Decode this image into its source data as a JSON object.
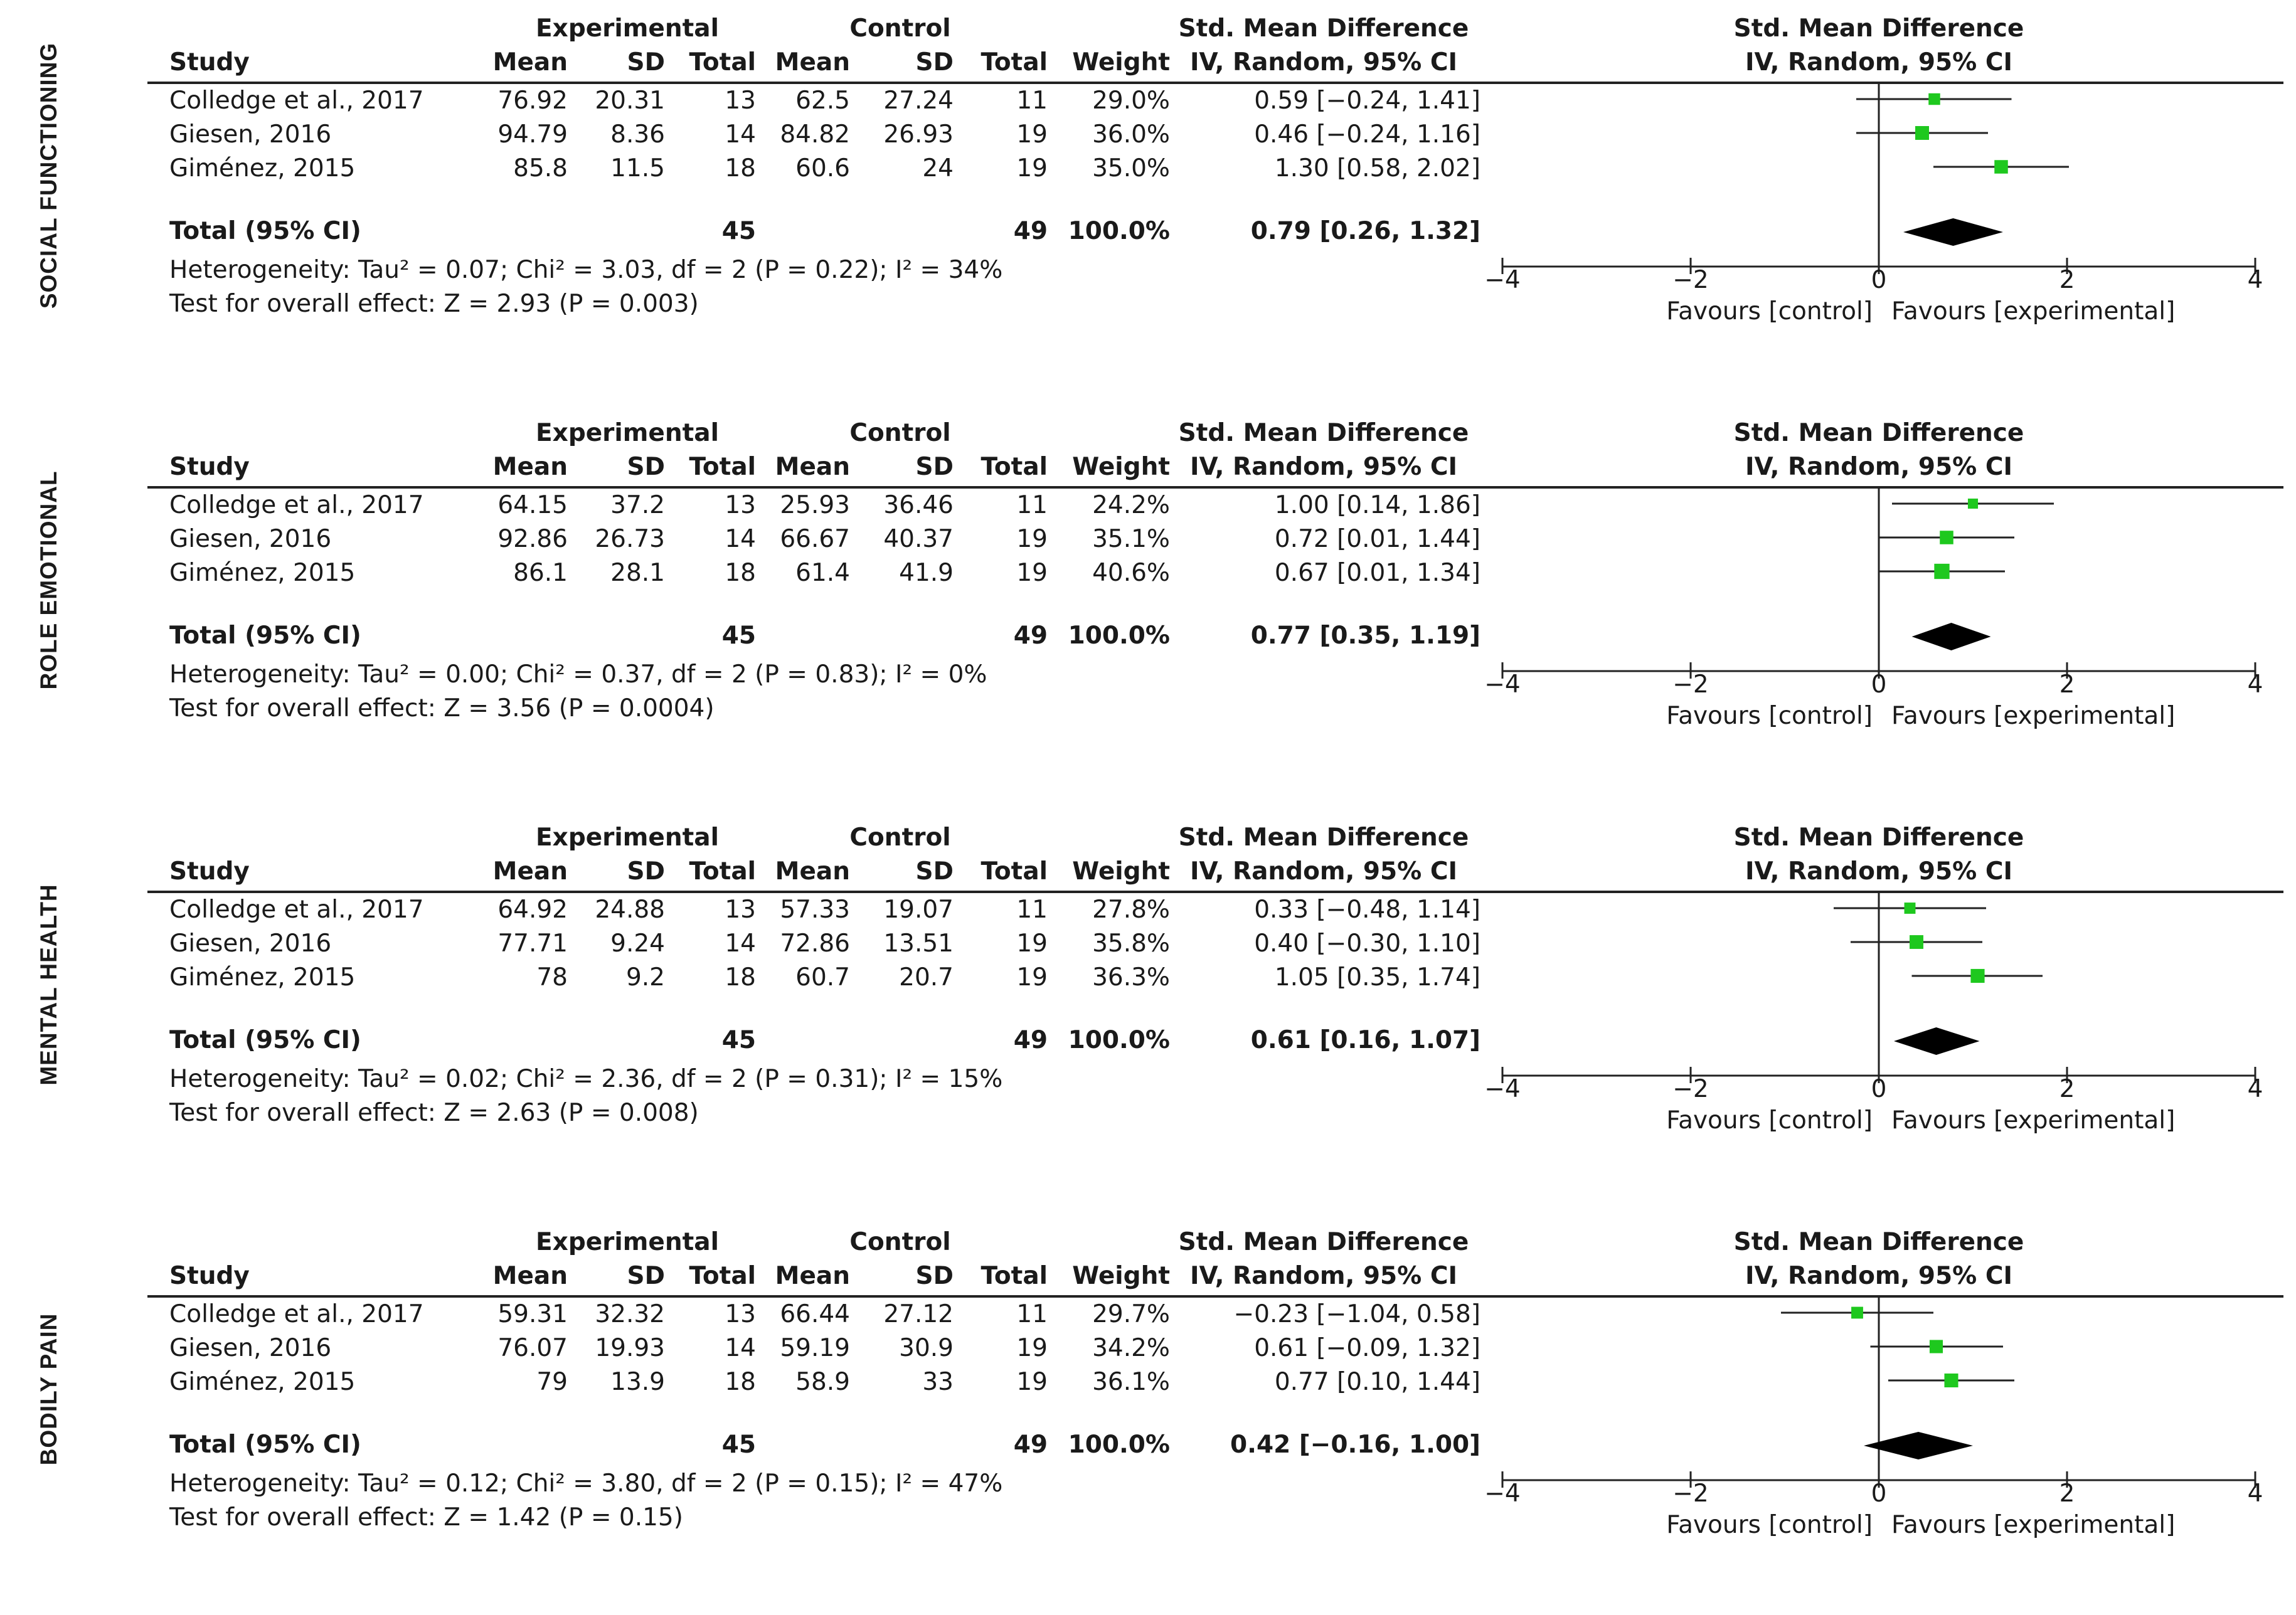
{
  "colors": {
    "point": "#1ec81e",
    "diamond": "#000000",
    "line": "#222222"
  },
  "headers": {
    "study": "Study",
    "experimental": "Experimental",
    "control": "Control",
    "mean": "Mean",
    "sd": "SD",
    "total": "Total",
    "weight": "Weight",
    "smd": "Std. Mean Difference",
    "method": "IV, Random, 95% CI"
  },
  "panels": [
    {
      "label": "SOCIAL FUNCTIONING",
      "rows": [
        {
          "study": "Colledge et al., 2017",
          "e_mean": "76.92",
          "e_sd": "20.31",
          "e_total": "13",
          "c_mean": "62.5",
          "c_sd": "27.24",
          "c_total": "11",
          "weight": "29.0%",
          "ci": "0.59 [−0.24, 1.41]"
        },
        {
          "study": "Giesen, 2016",
          "e_mean": "94.79",
          "e_sd": "8.36",
          "e_total": "14",
          "c_mean": "84.82",
          "c_sd": "26.93",
          "c_total": "19",
          "weight": "36.0%",
          "ci": "0.46 [−0.24, 1.16]"
        },
        {
          "study": "Giménez, 2015",
          "e_mean": "85.8",
          "e_sd": "11.5",
          "e_total": "18",
          "c_mean": "60.6",
          "c_sd": "24",
          "c_total": "19",
          "weight": "35.0%",
          "ci": "1.30 [0.58, 2.02]"
        }
      ],
      "total": {
        "label": "Total (95% CI)",
        "e_total": "45",
        "c_total": "49",
        "weight": "100.0%",
        "ci": "0.79 [0.26, 1.32]"
      },
      "heterogeneity": "Heterogeneity: Tau² = 0.07; Chi² = 3.03, df = 2 (P = 0.22); I² = 34%",
      "overall": "Test for overall effect: Z = 2.93 (P = 0.003)"
    },
    {
      "label": "ROLE EMOTIONAL",
      "rows": [
        {
          "study": "Colledge et al., 2017",
          "e_mean": "64.15",
          "e_sd": "37.2",
          "e_total": "13",
          "c_mean": "25.93",
          "c_sd": "36.46",
          "c_total": "11",
          "weight": "24.2%",
          "ci": "1.00 [0.14, 1.86]"
        },
        {
          "study": "Giesen, 2016",
          "e_mean": "92.86",
          "e_sd": "26.73",
          "e_total": "14",
          "c_mean": "66.67",
          "c_sd": "40.37",
          "c_total": "19",
          "weight": "35.1%",
          "ci": "0.72 [0.01, 1.44]"
        },
        {
          "study": "Giménez, 2015",
          "e_mean": "86.1",
          "e_sd": "28.1",
          "e_total": "18",
          "c_mean": "61.4",
          "c_sd": "41.9",
          "c_total": "19",
          "weight": "40.6%",
          "ci": "0.67 [0.01, 1.34]"
        }
      ],
      "total": {
        "label": "Total (95% CI)",
        "e_total": "45",
        "c_total": "49",
        "weight": "100.0%",
        "ci": "0.77 [0.35, 1.19]"
      },
      "heterogeneity": "Heterogeneity: Tau² = 0.00; Chi² = 0.37, df = 2 (P = 0.83); I² = 0%",
      "overall": "Test for overall effect: Z = 3.56 (P = 0.0004)"
    },
    {
      "label": "MENTAL HEALTH",
      "rows": [
        {
          "study": "Colledge et al., 2017",
          "e_mean": "64.92",
          "e_sd": "24.88",
          "e_total": "13",
          "c_mean": "57.33",
          "c_sd": "19.07",
          "c_total": "11",
          "weight": "27.8%",
          "ci": "0.33 [−0.48, 1.14]"
        },
        {
          "study": "Giesen, 2016",
          "e_mean": "77.71",
          "e_sd": "9.24",
          "e_total": "14",
          "c_mean": "72.86",
          "c_sd": "13.51",
          "c_total": "19",
          "weight": "35.8%",
          "ci": "0.40 [−0.30, 1.10]"
        },
        {
          "study": "Giménez, 2015",
          "e_mean": "78",
          "e_sd": "9.2",
          "e_total": "18",
          "c_mean": "60.7",
          "c_sd": "20.7",
          "c_total": "19",
          "weight": "36.3%",
          "ci": "1.05 [0.35, 1.74]"
        }
      ],
      "total": {
        "label": "Total (95% CI)",
        "e_total": "45",
        "c_total": "49",
        "weight": "100.0%",
        "ci": "0.61 [0.16, 1.07]"
      },
      "heterogeneity": "Heterogeneity: Tau² = 0.02; Chi² = 2.36, df = 2 (P = 0.31); I² = 15%",
      "overall": "Test for overall effect: Z = 2.63 (P = 0.008)"
    },
    {
      "label": "BODILY PAIN",
      "rows": [
        {
          "study": "Colledge et al., 2017",
          "e_mean": "59.31",
          "e_sd": "32.32",
          "e_total": "13",
          "c_mean": "66.44",
          "c_sd": "27.12",
          "c_total": "11",
          "weight": "29.7%",
          "ci": "−0.23 [−1.04, 0.58]"
        },
        {
          "study": "Giesen, 2016",
          "e_mean": "76.07",
          "e_sd": "19.93",
          "e_total": "14",
          "c_mean": "59.19",
          "c_sd": "30.9",
          "c_total": "19",
          "weight": "34.2%",
          "ci": "0.61 [−0.09, 1.32]"
        },
        {
          "study": "Giménez, 2015",
          "e_mean": "79",
          "e_sd": "13.9",
          "e_total": "18",
          "c_mean": "58.9",
          "c_sd": "33",
          "c_total": "19",
          "weight": "36.1%",
          "ci": "0.77 [0.10, 1.44]"
        }
      ],
      "total": {
        "label": "Total (95% CI)",
        "e_total": "45",
        "c_total": "49",
        "weight": "100.0%",
        "ci": "0.42 [−0.16, 1.00]"
      },
      "heterogeneity": "Heterogeneity: Tau² = 0.12; Chi² = 3.80, df = 2 (P = 0.15); I² = 47%",
      "overall": "Test for overall effect: Z = 1.42 (P = 0.15)"
    }
  ],
  "chart_data": [
    {
      "type": "forest",
      "title": "SOCIAL FUNCTIONING",
      "plot_title": "Std. Mean Difference",
      "plot_subtitle": "IV, Random, 95% CI",
      "xlim": [
        -4,
        4
      ],
      "xticks": [
        "−4",
        "−2",
        "0",
        "2",
        "4"
      ],
      "xlabel_left": "Favours [control]",
      "xlabel_right": "Favours [experimental]",
      "studies": [
        {
          "name": "Colledge et al., 2017",
          "smd": 0.59,
          "lo": -0.24,
          "hi": 1.41,
          "weight": 29.0
        },
        {
          "name": "Giesen, 2016",
          "smd": 0.46,
          "lo": -0.24,
          "hi": 1.16,
          "weight": 36.0
        },
        {
          "name": "Giménez, 2015",
          "smd": 1.3,
          "lo": 0.58,
          "hi": 2.02,
          "weight": 35.0
        }
      ],
      "pooled": {
        "smd": 0.79,
        "lo": 0.26,
        "hi": 1.32
      }
    },
    {
      "type": "forest",
      "title": "ROLE EMOTIONAL",
      "plot_title": "Std. Mean Difference",
      "plot_subtitle": "IV, Random, 95% CI",
      "xlim": [
        -4,
        4
      ],
      "xticks": [
        "−4",
        "−2",
        "0",
        "2",
        "4"
      ],
      "xlabel_left": "Favours [control]",
      "xlabel_right": "Favours [experimental]",
      "studies": [
        {
          "name": "Colledge et al., 2017",
          "smd": 1.0,
          "lo": 0.14,
          "hi": 1.86,
          "weight": 24.2
        },
        {
          "name": "Giesen, 2016",
          "smd": 0.72,
          "lo": 0.01,
          "hi": 1.44,
          "weight": 35.1
        },
        {
          "name": "Giménez, 2015",
          "smd": 0.67,
          "lo": 0.01,
          "hi": 1.34,
          "weight": 40.6
        }
      ],
      "pooled": {
        "smd": 0.77,
        "lo": 0.35,
        "hi": 1.19
      }
    },
    {
      "type": "forest",
      "title": "MENTAL HEALTH",
      "plot_title": "Std. Mean Difference",
      "plot_subtitle": "IV, Random, 95% CI",
      "xlim": [
        -4,
        4
      ],
      "xticks": [
        "−4",
        "−2",
        "0",
        "2",
        "4"
      ],
      "xlabel_left": "Favours [control]",
      "xlabel_right": "Favours [experimental]",
      "studies": [
        {
          "name": "Colledge et al., 2017",
          "smd": 0.33,
          "lo": -0.48,
          "hi": 1.14,
          "weight": 27.8
        },
        {
          "name": "Giesen, 2016",
          "smd": 0.4,
          "lo": -0.3,
          "hi": 1.1,
          "weight": 35.8
        },
        {
          "name": "Giménez, 2015",
          "smd": 1.05,
          "lo": 0.35,
          "hi": 1.74,
          "weight": 36.3
        }
      ],
      "pooled": {
        "smd": 0.61,
        "lo": 0.16,
        "hi": 1.07
      }
    },
    {
      "type": "forest",
      "title": "BODILY PAIN",
      "plot_title": "Std. Mean Difference",
      "plot_subtitle": "IV, Random, 95% CI",
      "xlim": [
        -4,
        4
      ],
      "xticks": [
        "−4",
        "−2",
        "0",
        "2",
        "4"
      ],
      "xlabel_left": "Favours [control]",
      "xlabel_right": "Favours [experimental]",
      "studies": [
        {
          "name": "Colledge et al., 2017",
          "smd": -0.23,
          "lo": -1.04,
          "hi": 0.58,
          "weight": 29.7
        },
        {
          "name": "Giesen, 2016",
          "smd": 0.61,
          "lo": -0.09,
          "hi": 1.32,
          "weight": 34.2
        },
        {
          "name": "Giménez, 2015",
          "smd": 0.77,
          "lo": 0.1,
          "hi": 1.44,
          "weight": 36.1
        }
      ],
      "pooled": {
        "smd": 0.42,
        "lo": -0.16,
        "hi": 1.0
      }
    }
  ]
}
